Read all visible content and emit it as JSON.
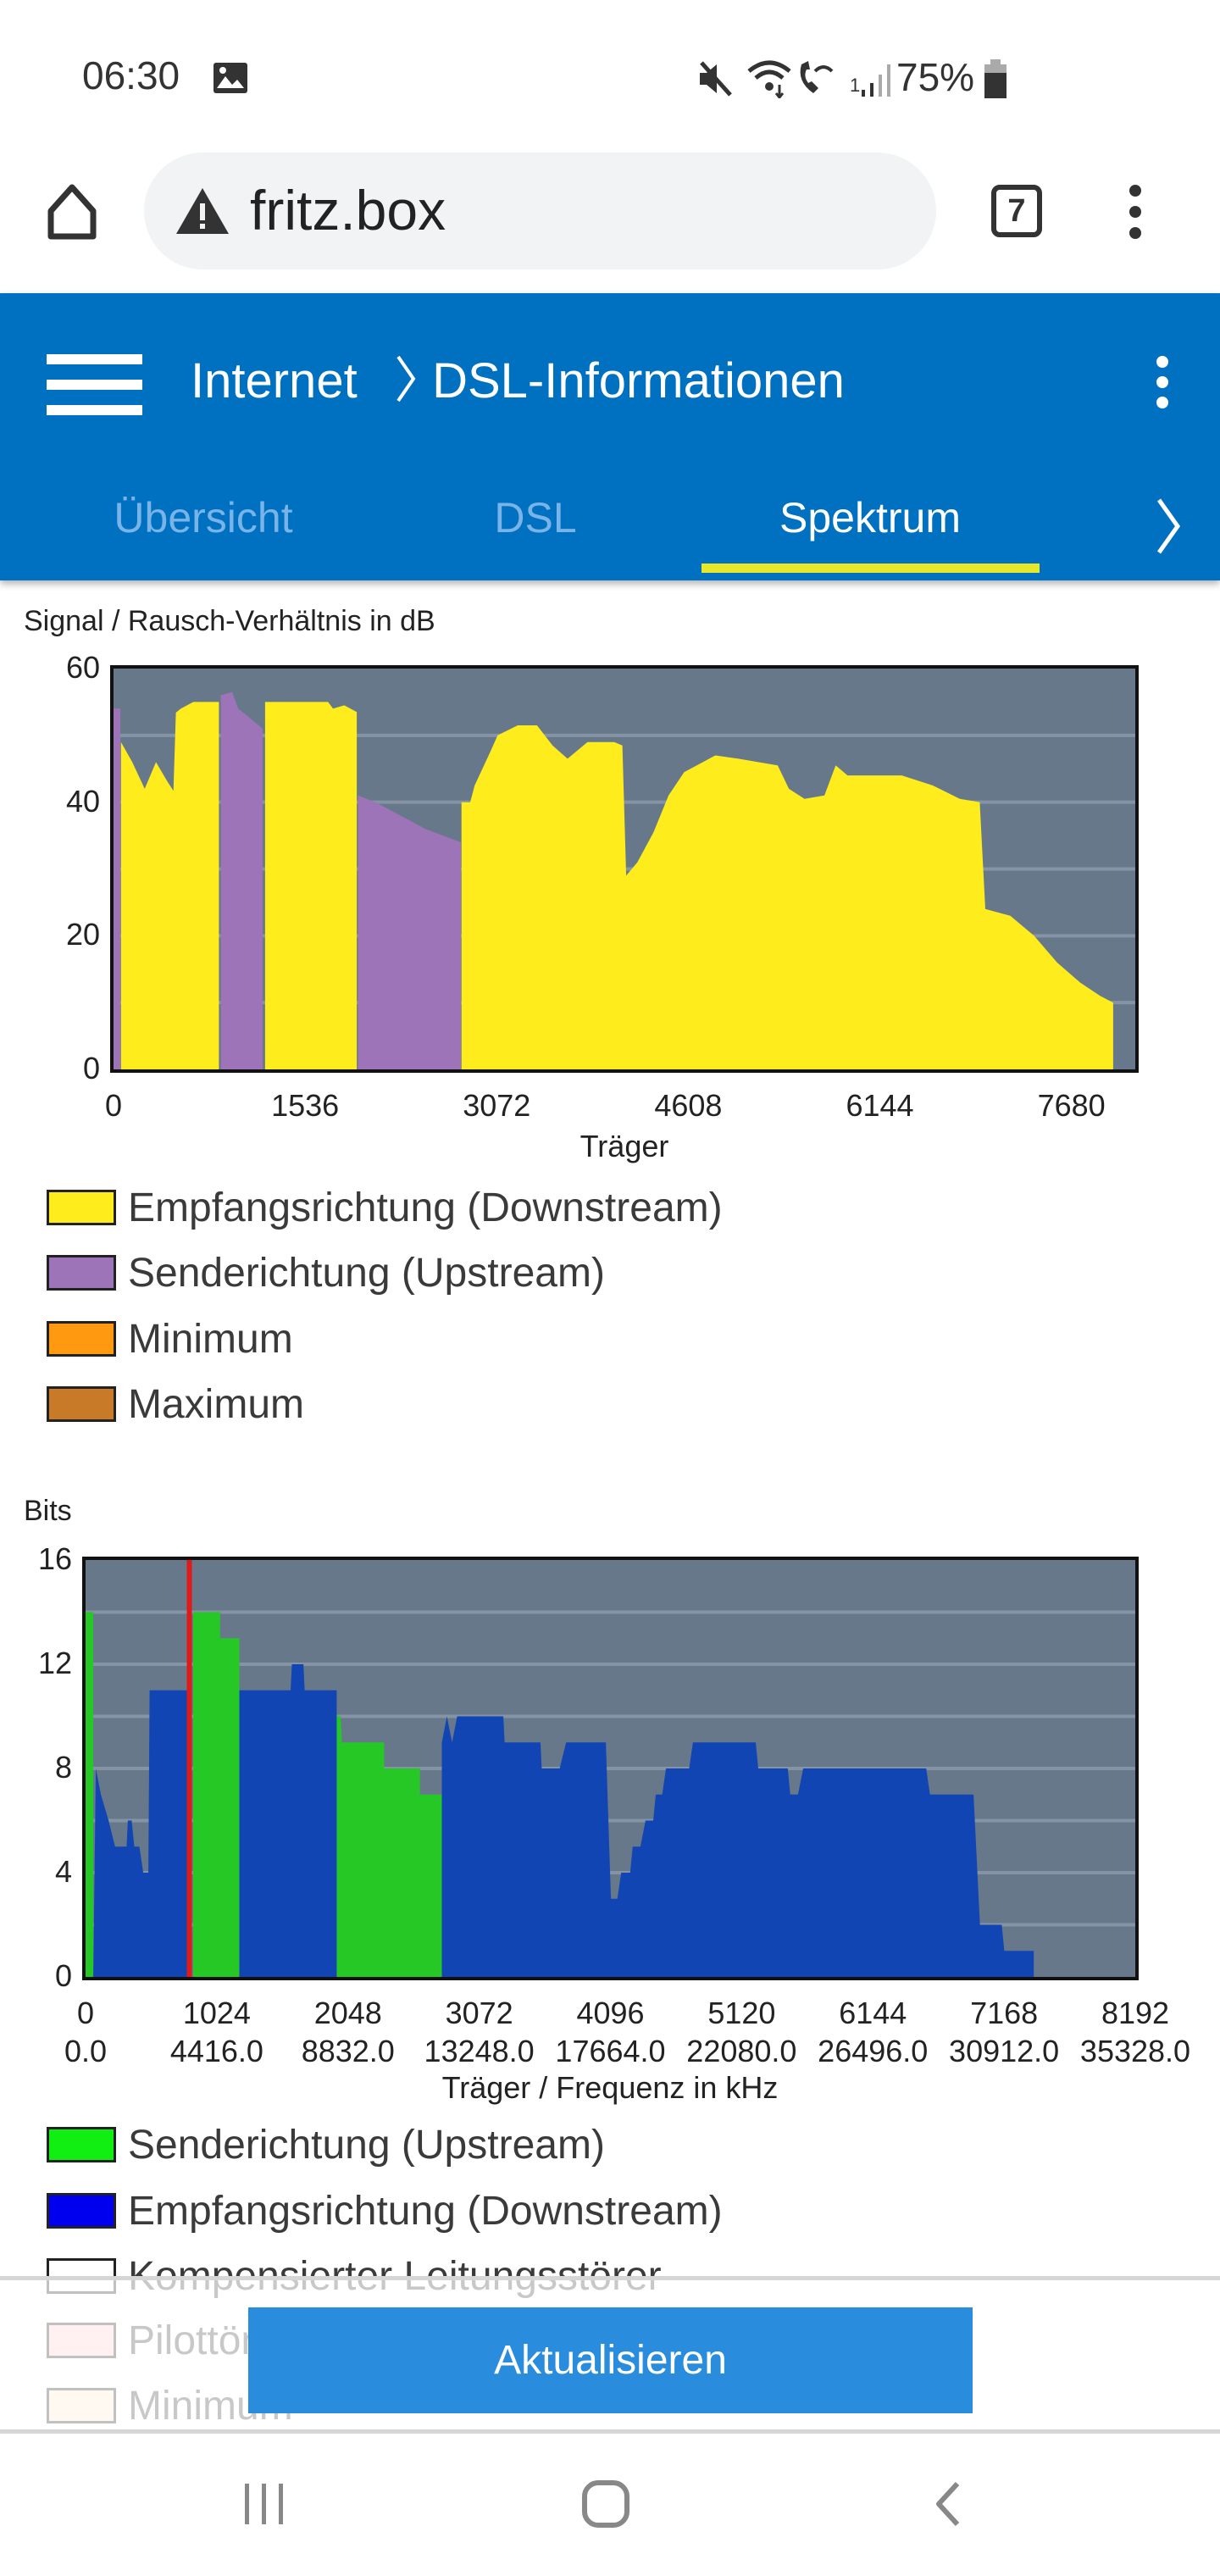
{
  "status": {
    "time": "06:30",
    "battery": "75%",
    "signal_sim": "1"
  },
  "browser": {
    "url": "fritz.box",
    "tab_count": "7"
  },
  "header": {
    "title": "Internet",
    "subtitle": "DSL-Informationen",
    "tabs": [
      {
        "label": "Übersicht",
        "active": false
      },
      {
        "label": "DSL",
        "active": false
      },
      {
        "label": "Spektrum",
        "active": true
      }
    ]
  },
  "chart_data": [
    {
      "type": "area",
      "title": "Signal / Rausch-Verhältnis in dB",
      "xlabel": "Träger",
      "ylabel": "dB",
      "xlim": [
        0,
        8192
      ],
      "ylim": [
        0,
        60
      ],
      "yticks": [
        "0",
        "20",
        "40",
        "60"
      ],
      "xticks": [
        "0",
        "1536",
        "3072",
        "4608",
        "6144",
        "7680"
      ],
      "series": [
        {
          "name": "Empfangsrichtung (Downstream)",
          "color": "#ffec1c",
          "segments": [
            [
              [
                60,
                49
              ],
              [
                150,
                46
              ],
              [
                250,
                42
              ],
              [
                340,
                46
              ],
              [
                435,
                43
              ],
              [
                480,
                41.7
              ],
              [
                500,
                53.4
              ],
              [
                540,
                54
              ],
              [
                640,
                55
              ],
              [
                845,
                55
              ]
            ],
            [
              [
                1215,
                55
              ],
              [
                1720,
                55
              ],
              [
                1760,
                54
              ],
              [
                1850,
                54.5
              ],
              [
                1950,
                53.5
              ]
            ],
            [
              [
                2790,
                40
              ],
              [
                2860,
                40
              ],
              [
                2895,
                42.5
              ],
              [
                3020,
                47.5
              ],
              [
                3080,
                50
              ],
              [
                3240,
                51.5
              ],
              [
                3395,
                51.5
              ],
              [
                3520,
                48.5
              ],
              [
                3640,
                46.5
              ],
              [
                3800,
                49
              ],
              [
                4015,
                49
              ],
              [
                4080,
                48.5
              ],
              [
                4110,
                29
              ],
              [
                4200,
                31
              ],
              [
                4330,
                35.5
              ],
              [
                4450,
                41
              ],
              [
                4575,
                44.5
              ],
              [
                4825,
                47
              ],
              [
                5010,
                46.5
              ],
              [
                5325,
                45.5
              ],
              [
                5415,
                42
              ],
              [
                5540,
                40.5
              ],
              [
                5700,
                41
              ],
              [
                5790,
                45.5
              ],
              [
                5885,
                44
              ],
              [
                6320,
                44
              ],
              [
                6570,
                42.5
              ],
              [
                6785,
                40.5
              ],
              [
                6945,
                40
              ],
              [
                6990,
                24
              ],
              [
                7190,
                23
              ],
              [
                7380,
                20
              ],
              [
                7565,
                16
              ],
              [
                7750,
                13
              ],
              [
                7910,
                11
              ],
              [
                8015,
                10
              ]
            ]
          ]
        },
        {
          "name": "Senderichtung (Upstream)",
          "color": "#9e74b8",
          "segments": [
            [
              [
                0,
                54
              ],
              [
                55,
                54
              ]
            ],
            [
              [
                860,
                56
              ],
              [
                950,
                56.5
              ],
              [
                1000,
                54
              ],
              [
                1100,
                52.5
              ],
              [
                1195,
                51
              ]
            ],
            [
              [
                1960,
                41
              ],
              [
                2100,
                40
              ],
              [
                2300,
                38
              ],
              [
                2500,
                36
              ],
              [
                2785,
                34
              ]
            ]
          ]
        },
        {
          "name": "Minimum",
          "color": "#ff9a10",
          "segments": []
        },
        {
          "name": "Maximum",
          "color": "#c87a28",
          "segments": []
        }
      ],
      "legend_position": "bottom"
    },
    {
      "type": "area",
      "title": "Bits",
      "xlabel": "Träger / Frequenz in kHz",
      "ylabel": "Bits",
      "xlim": [
        0,
        8192
      ],
      "ylim": [
        0,
        16
      ],
      "yticks": [
        "0",
        "4",
        "8",
        "12",
        "16"
      ],
      "xticks": [
        "0",
        "1024",
        "2048",
        "3072",
        "4096",
        "5120",
        "6144",
        "7168",
        "8192"
      ],
      "xticks_freq": [
        "0.0",
        "4416.0",
        "8832.0",
        "13248.0",
        "17664.0",
        "22080.0",
        "26496.0",
        "30912.0",
        "35328.0"
      ],
      "pilot_tone_carrier": 810,
      "series": [
        {
          "name": "Senderichtung (Upstream)",
          "color": "#26c826",
          "legend_color": "#11ee11",
          "segments": [
            [
              [
                0,
                14
              ],
              [
                60,
                14
              ]
            ],
            [
              [
                840,
                14
              ],
              [
                1050,
                14
              ],
              [
                1050,
                13
              ],
              [
                1200,
                13
              ]
            ],
            [
              [
                1960,
                10
              ],
              [
                1990,
                10
              ],
              [
                2000,
                9
              ],
              [
                2330,
                9
              ],
              [
                2330,
                8
              ],
              [
                2610,
                8
              ],
              [
                2610,
                7
              ],
              [
                2780,
                7
              ]
            ]
          ]
        },
        {
          "name": "Empfangsrichtung (Downstream)",
          "color": "#1245b4",
          "legend_color": "#0000ee",
          "segments": [
            [
              [
                60,
                0
              ],
              [
                80,
                8
              ],
              [
                120,
                7
              ],
              [
                180,
                6
              ],
              [
                230,
                5
              ],
              [
                320,
                5
              ],
              [
                330,
                6
              ],
              [
                360,
                6
              ],
              [
                380,
                5
              ],
              [
                420,
                5
              ],
              [
                450,
                4
              ],
              [
                490,
                4
              ],
              [
                500,
                11
              ],
              [
                800,
                11
              ]
            ],
            [
              [
                1200,
                11
              ],
              [
                1600,
                11
              ],
              [
                1610,
                12
              ],
              [
                1700,
                12
              ],
              [
                1710,
                11
              ],
              [
                1960,
                11
              ]
            ],
            [
              [
                2780,
                9
              ],
              [
                2820,
                10
              ],
              [
                2860,
                9
              ],
              [
                2900,
                10
              ],
              [
                3260,
                10
              ],
              [
                3270,
                9
              ],
              [
                3550,
                9
              ],
              [
                3560,
                8
              ],
              [
                3700,
                8
              ],
              [
                3750,
                9
              ],
              [
                4060,
                9
              ],
              [
                4100,
                3
              ],
              [
                4150,
                3
              ],
              [
                4180,
                4
              ],
              [
                4250,
                4
              ],
              [
                4270,
                5
              ],
              [
                4330,
                5
              ],
              [
                4370,
                6
              ],
              [
                4430,
                6
              ],
              [
                4450,
                7
              ],
              [
                4500,
                7
              ],
              [
                4530,
                8
              ],
              [
                4710,
                8
              ],
              [
                4740,
                9
              ],
              [
                5230,
                9
              ],
              [
                5250,
                8
              ],
              [
                5480,
                8
              ],
              [
                5500,
                7
              ],
              [
                5560,
                7
              ],
              [
                5600,
                8
              ],
              [
                6560,
                8
              ],
              [
                6590,
                7
              ],
              [
                6930,
                7
              ],
              [
                6980,
                2
              ],
              [
                7150,
                2
              ],
              [
                7170,
                1
              ],
              [
                7400,
                1
              ]
            ]
          ]
        },
        {
          "name": "Kompensierter Leitungsstörer",
          "color": "#ffffff",
          "segments": []
        },
        {
          "name": "Pilottöne",
          "color": "#ffcccc",
          "line_color": "#e01a1a",
          "segments": []
        },
        {
          "name": "Minimum",
          "color": "#ffe8cc",
          "segments": []
        }
      ],
      "legend_position": "bottom"
    }
  ],
  "footer": {
    "refresh_label": "Aktualisieren"
  }
}
